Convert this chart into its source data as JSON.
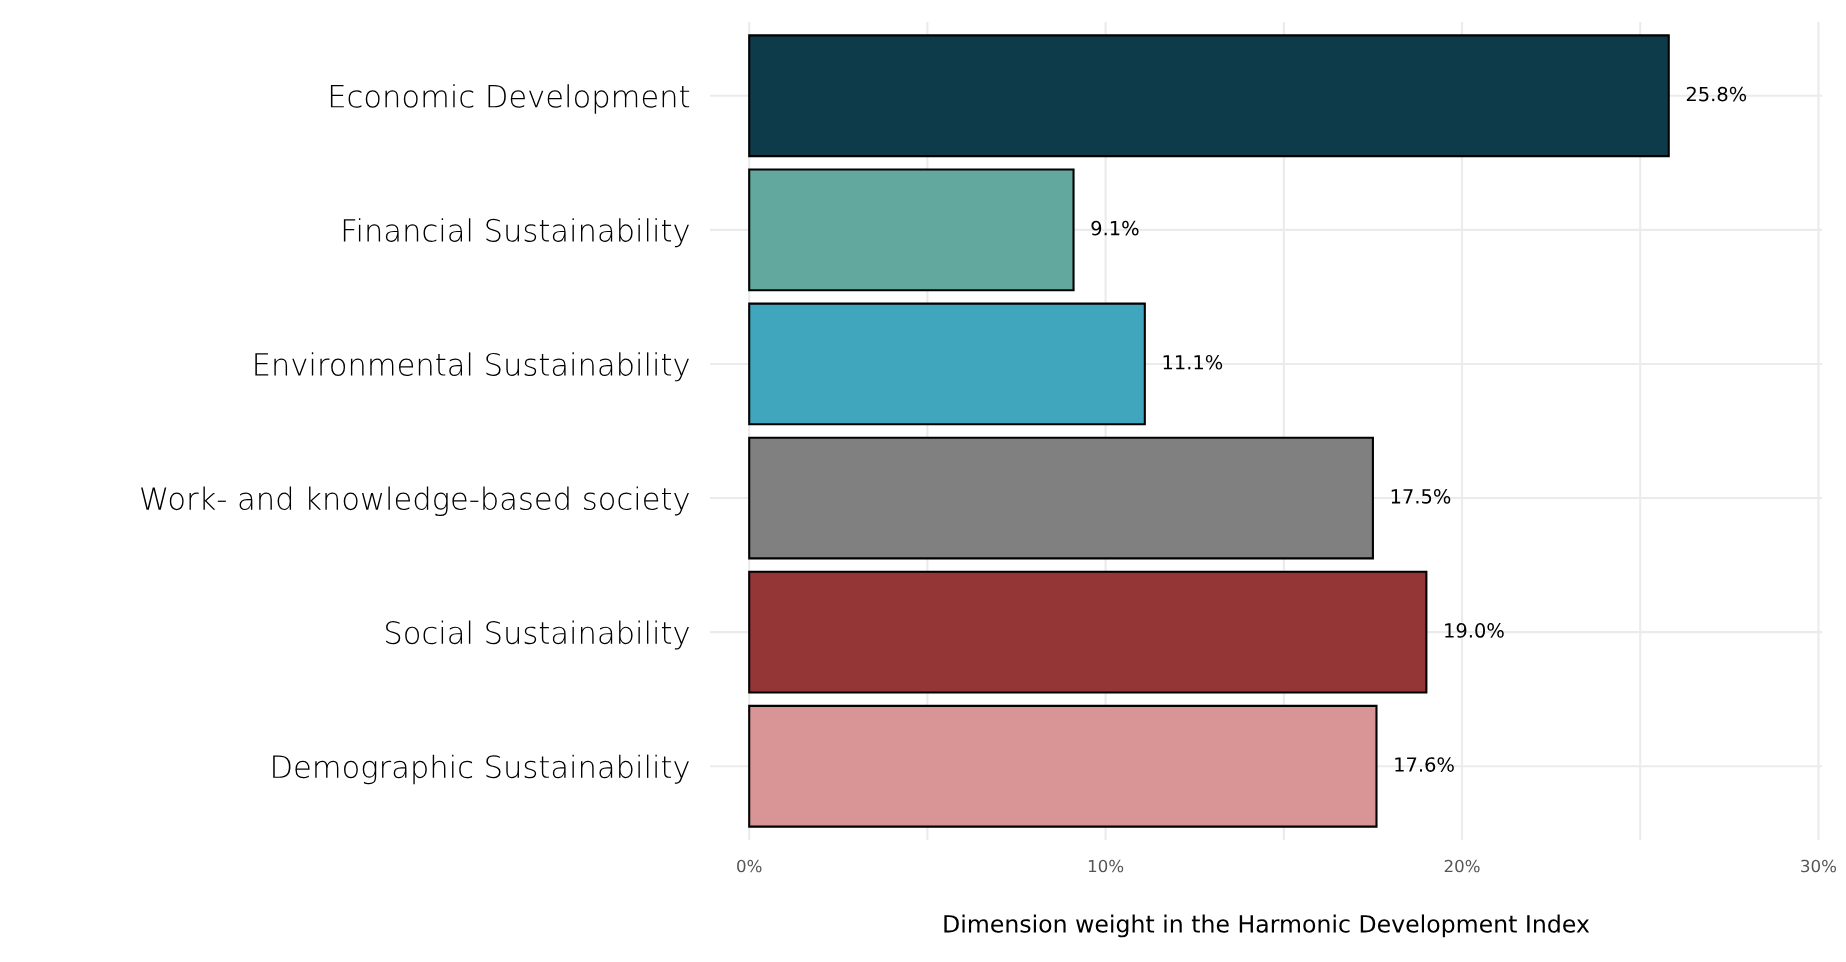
{
  "chart_data": {
    "type": "bar",
    "orientation": "horizontal",
    "xlabel": "Dimension weight in the Harmonic Development Index",
    "categories": [
      "Economic Development",
      "Financial Sustainability",
      "Environmental Sustainability",
      "Work- and knowledge-based society",
      "Social Sustainability",
      "Demographic Sustainability"
    ],
    "values": [
      25.8,
      9.1,
      11.1,
      17.5,
      19.0,
      17.6
    ],
    "colors": [
      "#0d3b4a",
      "#62a89e",
      "#40a6bd",
      "#808080",
      "#943636",
      "#d99595"
    ],
    "value_labels": [
      "25.8%",
      "9.1%",
      "11.1%",
      "17.5%",
      "19.0%",
      "17.6%"
    ],
    "xlim": [
      -1.1,
      30.1
    ],
    "xticks": [
      {
        "value": 0,
        "label": "0%"
      },
      {
        "value": 5,
        "label": null
      },
      {
        "value": 10,
        "label": "10%"
      },
      {
        "value": 15,
        "label": null
      },
      {
        "value": 20,
        "label": "20%"
      },
      {
        "value": 25,
        "label": null
      },
      {
        "value": 30,
        "label": "30%"
      }
    ],
    "grid": true,
    "legend": false
  }
}
